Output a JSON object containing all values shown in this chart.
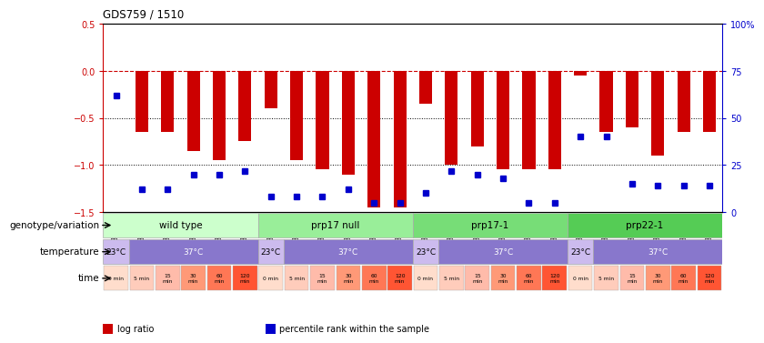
{
  "title": "GDS759 / 1510",
  "samples": [
    "GSM30876",
    "GSM30877",
    "GSM30878",
    "GSM30879",
    "GSM30880",
    "GSM30881",
    "GSM30882",
    "GSM30883",
    "GSM30884",
    "GSM30885",
    "GSM30886",
    "GSM30887",
    "GSM30888",
    "GSM30889",
    "GSM30890",
    "GSM30891",
    "GSM30892",
    "GSM30893",
    "GSM30894",
    "GSM30895",
    "GSM30896",
    "GSM30897",
    "GSM30898",
    "GSM30899"
  ],
  "log_ratio": [
    0.0,
    -0.65,
    -0.65,
    -0.85,
    -0.95,
    -0.75,
    -0.4,
    -0.95,
    -1.05,
    -1.1,
    -1.45,
    -1.45,
    -0.35,
    -1.0,
    -0.8,
    -1.05,
    -1.05,
    -1.05,
    -0.05,
    -0.65,
    -0.6,
    -0.9,
    -0.65,
    -0.65
  ],
  "percentile_rank": [
    62,
    12,
    12,
    20,
    20,
    22,
    8,
    8,
    8,
    12,
    5,
    5,
    10,
    22,
    20,
    18,
    5,
    5,
    40,
    40,
    15,
    14,
    14,
    14
  ],
  "ylim_left": [
    -1.5,
    0.5
  ],
  "ylim_right": [
    0,
    100
  ],
  "yticks_left": [
    -1.5,
    -1.0,
    -0.5,
    0.0,
    0.5
  ],
  "yticks_right": [
    0,
    25,
    50,
    75,
    100
  ],
  "ytick_labels_right": [
    "0",
    "25",
    "50",
    "75",
    "100%"
  ],
  "bar_color": "#cc0000",
  "point_color": "#0000cc",
  "hline_color": "#cc0000",
  "dotted_lines": [
    -0.5,
    -1.0
  ],
  "bg_color": "#ffffff",
  "genotype_groups": [
    {
      "label": "wild type",
      "start": 0,
      "end": 5,
      "color": "#ccffcc"
    },
    {
      "label": "prp17 null",
      "start": 6,
      "end": 11,
      "color": "#99ee99"
    },
    {
      "label": "prp17-1",
      "start": 12,
      "end": 17,
      "color": "#77dd77"
    },
    {
      "label": "prp22-1",
      "start": 18,
      "end": 23,
      "color": "#55cc55"
    }
  ],
  "temp_groups": [
    {
      "label": "23°C",
      "start": 0,
      "end": 0,
      "color": "#ccbbee"
    },
    {
      "label": "37°C",
      "start": 1,
      "end": 5,
      "color": "#8877cc"
    },
    {
      "label": "23°C",
      "start": 6,
      "end": 6,
      "color": "#ccbbee"
    },
    {
      "label": "37°C",
      "start": 7,
      "end": 11,
      "color": "#8877cc"
    },
    {
      "label": "23°C",
      "start": 12,
      "end": 12,
      "color": "#ccbbee"
    },
    {
      "label": "37°C",
      "start": 13,
      "end": 17,
      "color": "#8877cc"
    },
    {
      "label": "23°C",
      "start": 18,
      "end": 18,
      "color": "#ccbbee"
    },
    {
      "label": "37°C",
      "start": 19,
      "end": 23,
      "color": "#8877cc"
    }
  ],
  "time_labels": [
    "0 min",
    "5 min",
    "15\nmin",
    "30\nmin",
    "60\nmin",
    "120\nmin",
    "0 min",
    "5 min",
    "15\nmin",
    "30\nmin",
    "60\nmin",
    "120\nmin",
    "0 min",
    "5 min",
    "15\nmin",
    "30\nmin",
    "60\nmin",
    "120\nmin",
    "0 min",
    "5 min",
    "15\nmin",
    "30\nmin",
    "60\nmin",
    "120\nmin"
  ],
  "time_colors": [
    "#ffddcc",
    "#ffccbb",
    "#ffbbaa",
    "#ff9977",
    "#ff7755",
    "#ff5533",
    "#ffddcc",
    "#ffccbb",
    "#ffbbaa",
    "#ff9977",
    "#ff7755",
    "#ff5533",
    "#ffddcc",
    "#ffccbb",
    "#ffbbaa",
    "#ff9977",
    "#ff7755",
    "#ff5533",
    "#ffddcc",
    "#ffccbb",
    "#ffbbaa",
    "#ff9977",
    "#ff7755",
    "#ff5533"
  ],
  "row_labels": [
    "genotype/variation",
    "temperature",
    "time"
  ],
  "legend_items": [
    {
      "color": "#cc0000",
      "label": "log ratio"
    },
    {
      "color": "#0000cc",
      "label": "percentile rank within the sample"
    }
  ]
}
